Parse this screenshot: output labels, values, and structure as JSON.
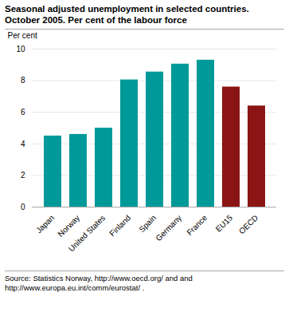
{
  "chart_data": {
    "type": "bar",
    "title": "Seasonal adjusted unemployment in selected countries.",
    "subtitle": "October 2005. Per cent of the labour force",
    "ylabel": "Per cent",
    "categories": [
      "Japan",
      "Norway",
      "United States",
      "Finland",
      "Spain",
      "Germany",
      "France",
      "EU15",
      "OECD"
    ],
    "values": [
      4.5,
      4.6,
      5.0,
      8.05,
      8.55,
      9.05,
      9.3,
      7.6,
      6.4
    ],
    "colors": [
      "#009999",
      "#009999",
      "#009999",
      "#009999",
      "#009999",
      "#009999",
      "#009999",
      "#8B1515",
      "#8B1515"
    ],
    "ylim": [
      0,
      10
    ],
    "yticks": [
      0,
      2,
      4,
      6,
      8,
      10
    ],
    "grid": true,
    "source": "Source: Statistics Norway, http://www.oecd.org/ and and\nhttp://www.europa.eu.int/comm/eurostat/ ."
  }
}
